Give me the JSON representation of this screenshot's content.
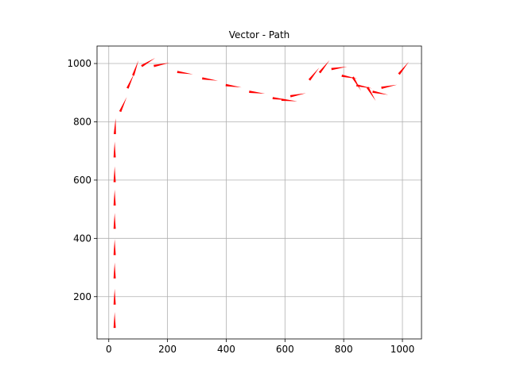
{
  "colors": {
    "vector": "#ff0000",
    "grid": "#b0b0b0",
    "axes": "#000000"
  },
  "chart_data": {
    "type": "quiver",
    "title": "Vector - Path",
    "xlabel": "",
    "ylabel": "",
    "xlim": [
      -40,
      1065
    ],
    "ylim": [
      55,
      1060
    ],
    "xticks": [
      0,
      200,
      400,
      600,
      800,
      1000
    ],
    "yticks": [
      200,
      400,
      600,
      800,
      1000
    ],
    "xtick_labels": [
      "0",
      "200",
      "400",
      "600",
      "800",
      "1000"
    ],
    "ytick_labels": [
      "200",
      "400",
      "600",
      "800",
      "1000"
    ],
    "grid": true,
    "vectors": [
      {
        "x": 20,
        "y": 120,
        "u": 0,
        "v": 1
      },
      {
        "x": 20,
        "y": 200,
        "u": 0,
        "v": 1
      },
      {
        "x": 20,
        "y": 290,
        "u": 0,
        "v": 1
      },
      {
        "x": 20,
        "y": 370,
        "u": 0,
        "v": 1
      },
      {
        "x": 20,
        "y": 460,
        "u": 0,
        "v": 1
      },
      {
        "x": 20,
        "y": 540,
        "u": 0,
        "v": 1
      },
      {
        "x": 20,
        "y": 620,
        "u": 0,
        "v": 1
      },
      {
        "x": 20,
        "y": 705,
        "u": 0,
        "v": 1
      },
      {
        "x": 22,
        "y": 785,
        "u": 0.05,
        "v": 1
      },
      {
        "x": 50,
        "y": 860,
        "u": 0.45,
        "v": 1
      },
      {
        "x": 75,
        "y": 940,
        "u": 0.45,
        "v": 1
      },
      {
        "x": 92,
        "y": 985,
        "u": 0.35,
        "v": 1
      },
      {
        "x": 135,
        "y": 1005,
        "u": 1,
        "v": 0.6
      },
      {
        "x": 180,
        "y": 997,
        "u": 1,
        "v": 0.2
      },
      {
        "x": 260,
        "y": 967,
        "u": 1,
        "v": -0.15
      },
      {
        "x": 345,
        "y": 945,
        "u": 1,
        "v": -0.15
      },
      {
        "x": 425,
        "y": 922,
        "u": 1,
        "v": -0.15
      },
      {
        "x": 505,
        "y": 900,
        "u": 1,
        "v": -0.12
      },
      {
        "x": 585,
        "y": 878,
        "u": 1,
        "v": -0.12
      },
      {
        "x": 615,
        "y": 873,
        "u": 1,
        "v": -0.1
      },
      {
        "x": 645,
        "y": 893,
        "u": 1,
        "v": 0.2
      },
      {
        "x": 700,
        "y": 965,
        "u": 0.8,
        "v": 1
      },
      {
        "x": 735,
        "y": 990,
        "u": 0.8,
        "v": 1
      },
      {
        "x": 785,
        "y": 985,
        "u": 1,
        "v": 0.15
      },
      {
        "x": 820,
        "y": 953,
        "u": 1,
        "v": -0.2
      },
      {
        "x": 845,
        "y": 930,
        "u": 0.6,
        "v": -1
      },
      {
        "x": 870,
        "y": 920,
        "u": 1,
        "v": -0.2
      },
      {
        "x": 895,
        "y": 895,
        "u": 0.6,
        "v": -1
      },
      {
        "x": 925,
        "y": 898,
        "u": 1,
        "v": -0.2
      },
      {
        "x": 955,
        "y": 922,
        "u": 1,
        "v": 0.2
      },
      {
        "x": 1005,
        "y": 985,
        "u": 0.8,
        "v": 1
      }
    ]
  }
}
